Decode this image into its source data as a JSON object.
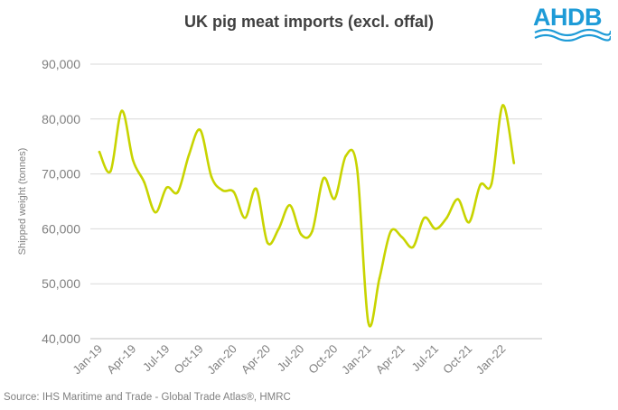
{
  "chart_data": {
    "type": "line",
    "title": "UK pig meat imports (excl. offal)",
    "ylabel": "Shipped weight (tonnes)",
    "xlabel": "",
    "ylim": [
      40000,
      90000
    ],
    "yticks": [
      40000,
      50000,
      60000,
      70000,
      80000,
      90000
    ],
    "ytick_labels": [
      "40,000",
      "50,000",
      "60,000",
      "70,000",
      "80,000",
      "90,000"
    ],
    "xtick_labels": [
      "Jan-19",
      "Apr-19",
      "Jul-19",
      "Oct-19",
      "Jan-20",
      "Apr-20",
      "Jul-20",
      "Oct-20",
      "Jan-21",
      "Apr-21",
      "Jul-21",
      "Oct-21",
      "Jan-22"
    ],
    "grid": true,
    "legend": "none",
    "series": [
      {
        "color": "#c8d400",
        "x": [
          "Jan-19",
          "Feb-19",
          "Mar-19",
          "Apr-19",
          "May-19",
          "Jun-19",
          "Jul-19",
          "Aug-19",
          "Sep-19",
          "Oct-19",
          "Nov-19",
          "Dec-19",
          "Jan-20",
          "Feb-20",
          "Mar-20",
          "Apr-20",
          "May-20",
          "Jun-20",
          "Jul-20",
          "Aug-20",
          "Sep-20",
          "Oct-20",
          "Nov-20",
          "Dec-20",
          "Jan-21",
          "Feb-21",
          "Mar-21",
          "Apr-21",
          "May-21",
          "Jun-21",
          "Jul-21",
          "Aug-21",
          "Sep-21",
          "Oct-21",
          "Nov-21",
          "Dec-21",
          "Jan-22",
          "Feb-22"
        ],
        "values": [
          74000,
          70500,
          81500,
          72500,
          68500,
          63000,
          67500,
          66700,
          73500,
          78000,
          69500,
          67000,
          66700,
          62000,
          67300,
          57500,
          60000,
          64300,
          59000,
          59600,
          69200,
          65500,
          73300,
          71000,
          43000,
          51000,
          59500,
          58500,
          56700,
          62000,
          60000,
          62000,
          65400,
          61200,
          68000,
          68200,
          82500,
          72000
        ]
      }
    ]
  },
  "source": "Source: IHS Maritime and Trade  - Global Trade  Atlas®, HMRC",
  "logo_text": "AHDB",
  "colors": {
    "line": "#c8d400",
    "logo": "#1e9bd7",
    "grid": "#d9d9d9",
    "text": "#808080"
  }
}
